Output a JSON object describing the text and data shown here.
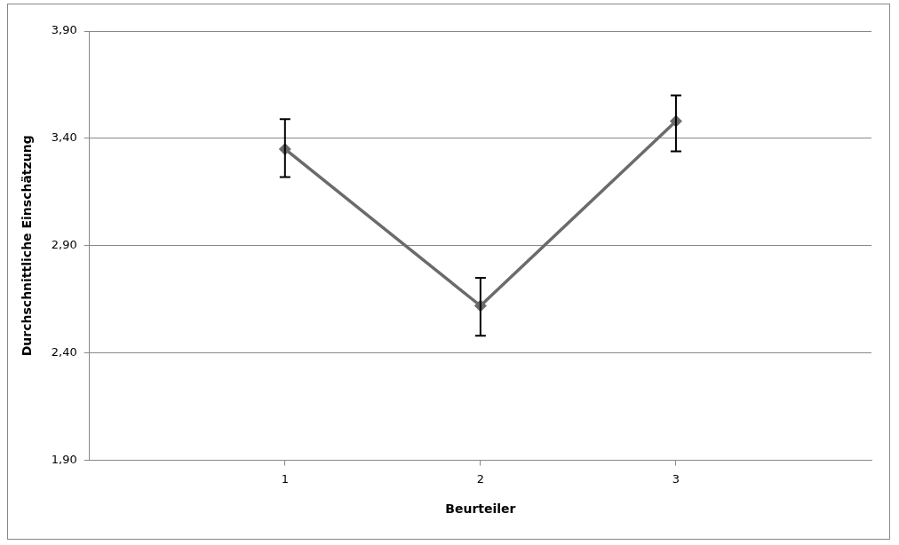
{
  "chart_data": {
    "type": "line",
    "xlabel": "Beurteiler",
    "ylabel": "Durchschnittliche Einschätzung",
    "x": [
      1,
      2,
      3
    ],
    "series": [
      {
        "color": "#6b6b6b",
        "values": [
          3.35,
          2.62,
          3.48
        ],
        "errors": [
          [
            3.22,
            3.49
          ],
          [
            2.48,
            2.75
          ],
          [
            3.34,
            3.6
          ]
        ]
      }
    ],
    "xlim": [
      0,
      4
    ],
    "xticks": [
      1,
      2,
      3
    ],
    "ylim": [
      1.9,
      3.9
    ],
    "yticks": [
      {
        "value": 1.9,
        "label": "1,90"
      },
      {
        "value": 2.4,
        "label": "2,40"
      },
      {
        "value": 2.9,
        "label": "2,90"
      },
      {
        "value": 3.4,
        "label": "3,40"
      },
      {
        "value": 3.9,
        "label": "3,90"
      }
    ],
    "grid": "y",
    "legend": false,
    "marker": "diamond",
    "line_style": "solid"
  }
}
